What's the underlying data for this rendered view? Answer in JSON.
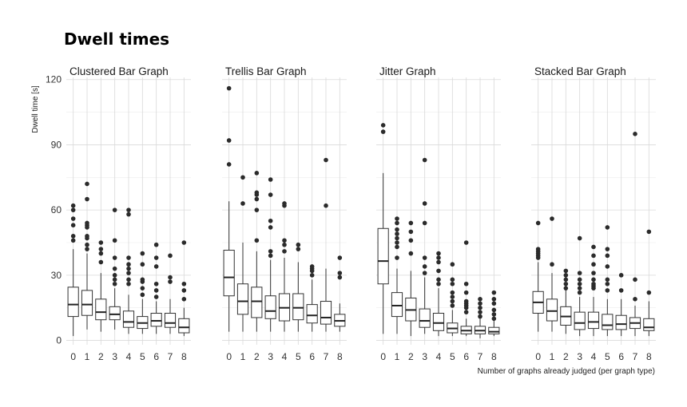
{
  "chart_data": {
    "type": "boxplot",
    "title": "Dwell times",
    "ylabel": "Dwell time [s]",
    "xlabel": "Number of graphs already judged (per graph type)",
    "ylim": [
      -2,
      121
    ],
    "yticks": [
      0,
      30,
      60,
      90,
      120
    ],
    "categories": [
      "0",
      "1",
      "2",
      "3",
      "4",
      "5",
      "6",
      "7",
      "8"
    ],
    "grid": true,
    "facets": [
      {
        "name": "Clustered Bar Graph",
        "boxes": [
          {
            "min": 2,
            "q1": 11,
            "median": 16.5,
            "q3": 24.5,
            "max": 42,
            "outliers": [
              46,
              48,
              53,
              56,
              60,
              62
            ]
          },
          {
            "min": 5,
            "q1": 11.5,
            "median": 16.5,
            "q3": 23,
            "max": 40,
            "outliers": [
              42,
              44,
              47,
              48,
              52,
              53,
              54,
              65,
              72
            ]
          },
          {
            "min": 4,
            "q1": 9.5,
            "median": 13,
            "q3": 19,
            "max": 31,
            "outliers": [
              36,
              40,
              42,
              45
            ]
          },
          {
            "min": 5,
            "q1": 9.5,
            "median": 12,
            "q3": 15.5,
            "max": 24,
            "outliers": [
              26,
              28,
              30,
              33,
              38,
              46,
              60
            ]
          },
          {
            "min": 3,
            "q1": 6,
            "median": 8.5,
            "q3": 13.5,
            "max": 21,
            "outliers": [
              26,
              28,
              31,
              33,
              35,
              38,
              58,
              60
            ]
          },
          {
            "min": 3,
            "q1": 5.5,
            "median": 8,
            "q3": 11,
            "max": 19,
            "outliers": [
              21,
              24,
              27,
              28,
              35,
              40
            ]
          },
          {
            "min": 3,
            "q1": 6.5,
            "median": 9,
            "q3": 12.5,
            "max": 18,
            "outliers": [
              20,
              23,
              26,
              34,
              38,
              44
            ]
          },
          {
            "min": 3,
            "q1": 6,
            "median": 8,
            "q3": 12.5,
            "max": 19,
            "outliers": [
              27,
              29,
              39
            ]
          },
          {
            "min": 2,
            "q1": 3.5,
            "median": 6,
            "q3": 10,
            "max": 15,
            "outliers": [
              19,
              23,
              26,
              45
            ]
          }
        ]
      },
      {
        "name": "Trellis Bar Graph",
        "boxes": [
          {
            "min": 4,
            "q1": 20.5,
            "median": 29,
            "q3": 41.5,
            "max": 64,
            "outliers": [
              81,
              92,
              116
            ]
          },
          {
            "min": 4,
            "q1": 12,
            "median": 18,
            "q3": 26,
            "max": 45,
            "outliers": [
              63,
              75
            ]
          },
          {
            "min": 4,
            "q1": 10.5,
            "median": 18,
            "q3": 24.5,
            "max": 41,
            "outliers": [
              46,
              60,
              65,
              67,
              68,
              77
            ]
          },
          {
            "min": 4,
            "q1": 10,
            "median": 13.5,
            "q3": 20.5,
            "max": 37,
            "outliers": [
              39,
              41,
              52,
              55,
              67,
              74
            ]
          },
          {
            "min": 4,
            "q1": 9,
            "median": 15,
            "q3": 21.5,
            "max": 38,
            "outliers": [
              41,
              44,
              46,
              62,
              63
            ]
          },
          {
            "min": 4,
            "q1": 9.5,
            "median": 15,
            "q3": 21.5,
            "max": 36,
            "outliers": [
              42,
              44
            ]
          },
          {
            "min": 4,
            "q1": 8,
            "median": 11.5,
            "q3": 16.5,
            "max": 28,
            "outliers": [
              30,
              32,
              33,
              34
            ]
          },
          {
            "min": 4,
            "q1": 7.5,
            "median": 10.5,
            "q3": 18,
            "max": 33,
            "outliers": [
              62,
              83
            ]
          },
          {
            "min": 4,
            "q1": 6.5,
            "median": 9,
            "q3": 12,
            "max": 17,
            "outliers": [
              29,
              31,
              38
            ]
          }
        ]
      },
      {
        "name": "Jitter Graph",
        "boxes": [
          {
            "min": 3,
            "q1": 26,
            "median": 36.5,
            "q3": 51.5,
            "max": 77,
            "outliers": [
              96,
              99
            ]
          },
          {
            "min": 3,
            "q1": 11,
            "median": 16,
            "q3": 22,
            "max": 33,
            "outliers": [
              38,
              43,
              45,
              47,
              49,
              51,
              54,
              56
            ]
          },
          {
            "min": 2,
            "q1": 9,
            "median": 14,
            "q3": 19.5,
            "max": 32,
            "outliers": [
              40,
              46,
              50,
              54
            ]
          },
          {
            "min": 3,
            "q1": 6,
            "median": 9,
            "q3": 14.5,
            "max": 29,
            "outliers": [
              31,
              34,
              38,
              54,
              63,
              83
            ]
          },
          {
            "min": 2,
            "q1": 4.5,
            "median": 8,
            "q3": 12.5,
            "max": 24,
            "outliers": [
              26,
              28,
              32,
              36,
              38,
              40
            ]
          },
          {
            "min": 2,
            "q1": 3.5,
            "median": 5.5,
            "q3": 8,
            "max": 14,
            "outliers": [
              16,
              18,
              20,
              22,
              26,
              28,
              35
            ]
          },
          {
            "min": 2,
            "q1": 3,
            "median": 4.5,
            "q3": 6.5,
            "max": 10,
            "outliers": [
              13,
              15,
              16,
              17,
              18,
              22,
              26,
              45
            ]
          },
          {
            "min": 1,
            "q1": 3,
            "median": 4.5,
            "q3": 6.5,
            "max": 10,
            "outliers": [
              11,
              13,
              15,
              17,
              19
            ]
          },
          {
            "min": 2,
            "q1": 3,
            "median": 4,
            "q3": 6,
            "max": 9,
            "outliers": [
              10,
              12,
              14,
              17,
              19,
              22
            ]
          }
        ]
      },
      {
        "name": "Stacked Bar Graph",
        "boxes": [
          {
            "min": 4,
            "q1": 12.5,
            "median": 17.5,
            "q3": 22.5,
            "max": 36,
            "outliers": [
              38,
              39,
              40,
              41,
              42,
              54
            ]
          },
          {
            "min": 4,
            "q1": 9,
            "median": 13.5,
            "q3": 19,
            "max": 31,
            "outliers": [
              35,
              56
            ]
          },
          {
            "min": 3,
            "q1": 7,
            "median": 11,
            "q3": 15.5,
            "max": 23,
            "outliers": [
              24,
              26,
              28,
              30,
              32
            ]
          },
          {
            "min": 2,
            "q1": 5,
            "median": 8,
            "q3": 13,
            "max": 20,
            "outliers": [
              22,
              24,
              26,
              28,
              31,
              47
            ]
          },
          {
            "min": 2,
            "q1": 5.5,
            "median": 8.5,
            "q3": 13,
            "max": 20,
            "outliers": [
              24,
              25,
              26,
              28,
              31,
              35,
              39,
              43
            ]
          },
          {
            "min": 2,
            "q1": 5,
            "median": 7,
            "q3": 12,
            "max": 19,
            "outliers": [
              23,
              26,
              28,
              34,
              39,
              42,
              52
            ]
          },
          {
            "min": 2,
            "q1": 5,
            "median": 7.5,
            "q3": 11.5,
            "max": 19,
            "outliers": [
              23,
              30
            ]
          },
          {
            "min": 2,
            "q1": 5.5,
            "median": 8,
            "q3": 10.5,
            "max": 16,
            "outliers": [
              19,
              28,
              95
            ]
          },
          {
            "min": 2,
            "q1": 4.5,
            "median": 6,
            "q3": 10,
            "max": 18,
            "outliers": [
              22,
              50
            ]
          }
        ]
      }
    ]
  }
}
